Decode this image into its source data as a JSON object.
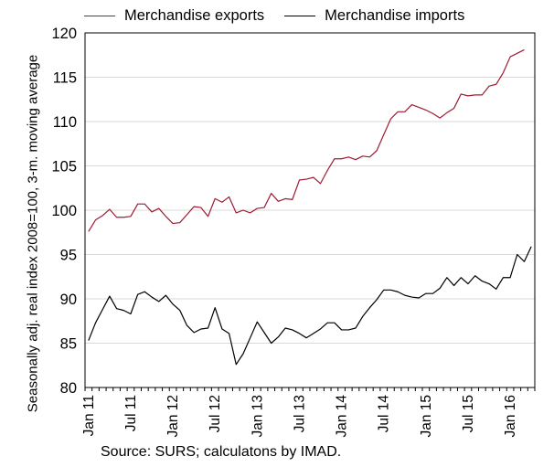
{
  "chart_data": {
    "type": "line",
    "title": "",
    "ylabel": "Seasonally adj. real index 2008=100, 3-m. moving average",
    "xlabel": "",
    "ylim": [
      80,
      120
    ],
    "yticks": [
      80,
      85,
      90,
      95,
      100,
      105,
      110,
      115,
      120
    ],
    "xticks": [
      "Jan 11",
      "Jul 11",
      "Jan 12",
      "Jul 12",
      "Jan 13",
      "Jul 13",
      "Jan 14",
      "Jul 14",
      "Jan 15",
      "Jul 15",
      "Jan 16"
    ],
    "grid": true,
    "legend": "top",
    "source": "Source: SURS; calculatons by IMAD.",
    "series": [
      {
        "name": "Merchandise exports",
        "color": "#9e1b32",
        "values": [
          97.6,
          98.9,
          99.4,
          100.1,
          99.2,
          99.2,
          99.3,
          100.7,
          100.7,
          99.8,
          100.2,
          99.3,
          98.5,
          98.6,
          99.5,
          100.4,
          100.3,
          99.3,
          101.3,
          100.9,
          101.5,
          99.7,
          100.0,
          99.7,
          100.2,
          100.3,
          101.9,
          101.0,
          101.3,
          101.2,
          103.4,
          103.5,
          103.7,
          103.0,
          104.5,
          105.8,
          105.8,
          106.0,
          105.7,
          106.1,
          106.0,
          106.7,
          108.5,
          110.3,
          111.1,
          111.1,
          111.9,
          111.6,
          111.3,
          110.9,
          110.4,
          111.0,
          111.5,
          113.1,
          112.9,
          113.0,
          113.0,
          114.0,
          114.2,
          115.5,
          117.3,
          117.7,
          118.1
        ]
      },
      {
        "name": "Merchandise imports",
        "color": "#000000",
        "values": [
          85.3,
          87.3,
          88.8,
          90.3,
          88.9,
          88.7,
          88.3,
          90.5,
          90.8,
          90.2,
          89.7,
          90.4,
          89.4,
          88.7,
          87.0,
          86.2,
          86.6,
          86.7,
          89.0,
          86.6,
          86.1,
          82.6,
          83.8,
          85.6,
          87.4,
          86.2,
          85.0,
          85.7,
          86.7,
          86.5,
          86.1,
          85.6,
          86.1,
          86.6,
          87.3,
          87.3,
          86.5,
          86.5,
          86.7,
          88.0,
          89.0,
          89.9,
          91.0,
          91.0,
          90.8,
          90.4,
          90.2,
          90.1,
          90.6,
          90.6,
          91.2,
          92.4,
          91.5,
          92.4,
          91.7,
          92.6,
          92.0,
          91.7,
          91.1,
          92.4,
          92.4,
          95.0,
          94.2,
          95.9
        ]
      }
    ]
  }
}
